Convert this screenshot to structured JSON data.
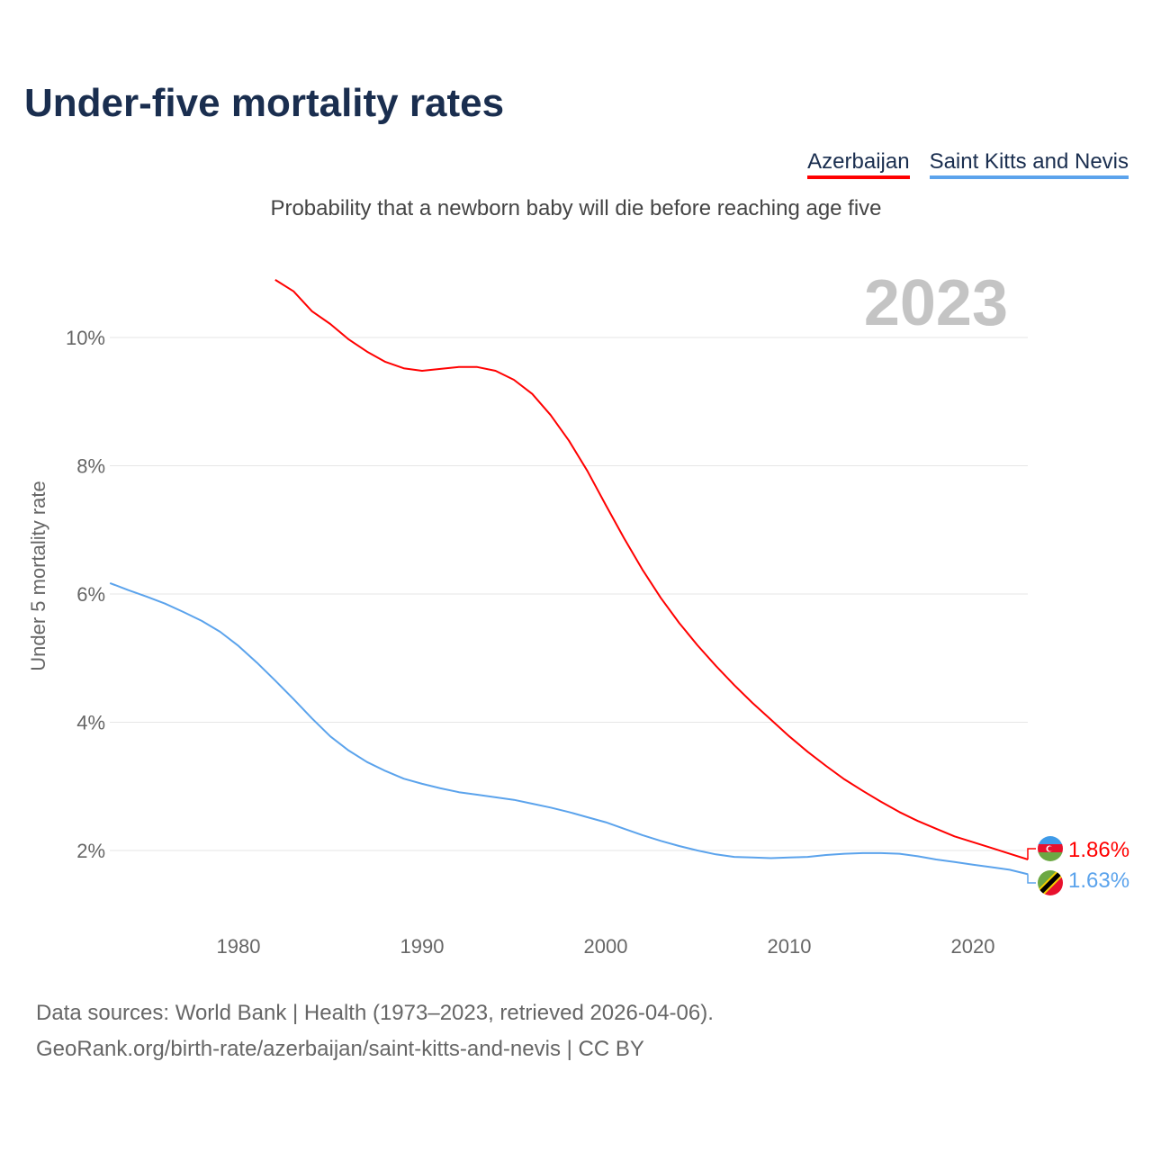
{
  "header": {
    "title": "Under-five mortality rates",
    "subtitle": "Probability that a newborn baby will die before reaching age five"
  },
  "footer": {
    "line1": "Data sources: World Bank | Health (1973–2023, retrieved 2026-04-06).",
    "line2": "GeoRank.org/birth-rate/azerbaijan/saint-kitts-and-nevis | CC BY"
  },
  "chart_data": {
    "type": "line",
    "title": "Under-five mortality rates",
    "year_label": "2023",
    "xlabel": "",
    "ylabel": "Under 5 mortality rate",
    "xlim": [
      1973,
      2023
    ],
    "ylim": [
      1,
      11
    ],
    "x_ticks": [
      1980,
      1990,
      2000,
      2010,
      2020
    ],
    "y_ticks": [
      {
        "v": 2,
        "label": "2%"
      },
      {
        "v": 4,
        "label": "4%"
      },
      {
        "v": 6,
        "label": "6%"
      },
      {
        "v": 8,
        "label": "8%"
      },
      {
        "v": 10,
        "label": "10%"
      }
    ],
    "grid": true,
    "legend": "top-right",
    "series": [
      {
        "name": "Azerbaijan",
        "color": "#ff0000",
        "end_label": "1.86%",
        "start_year": 1982,
        "values": [
          10.9,
          10.72,
          10.41,
          10.21,
          9.97,
          9.78,
          9.62,
          9.52,
          9.48,
          9.51,
          9.54,
          9.54,
          9.48,
          9.34,
          9.12,
          8.79,
          8.39,
          7.92,
          7.39,
          6.87,
          6.38,
          5.94,
          5.55,
          5.2,
          4.88,
          4.58,
          4.3,
          4.04,
          3.78,
          3.54,
          3.32,
          3.11,
          2.93,
          2.76,
          2.6,
          2.46,
          2.34,
          2.22,
          2.13,
          2.04,
          1.95,
          1.86
        ]
      },
      {
        "name": "Saint Kitts and Nevis",
        "color": "#5ba3ec",
        "end_label": "1.63%",
        "start_year": 1973,
        "values": [
          6.17,
          6.06,
          5.96,
          5.85,
          5.72,
          5.58,
          5.41,
          5.19,
          4.93,
          4.65,
          4.36,
          4.06,
          3.78,
          3.56,
          3.38,
          3.24,
          3.12,
          3.04,
          2.97,
          2.91,
          2.87,
          2.83,
          2.79,
          2.73,
          2.67,
          2.6,
          2.52,
          2.44,
          2.34,
          2.24,
          2.15,
          2.07,
          2.0,
          1.94,
          1.9,
          1.89,
          1.88,
          1.89,
          1.9,
          1.93,
          1.95,
          1.96,
          1.96,
          1.95,
          1.91,
          1.86,
          1.82,
          1.78,
          1.74,
          1.7,
          1.63
        ]
      }
    ]
  }
}
